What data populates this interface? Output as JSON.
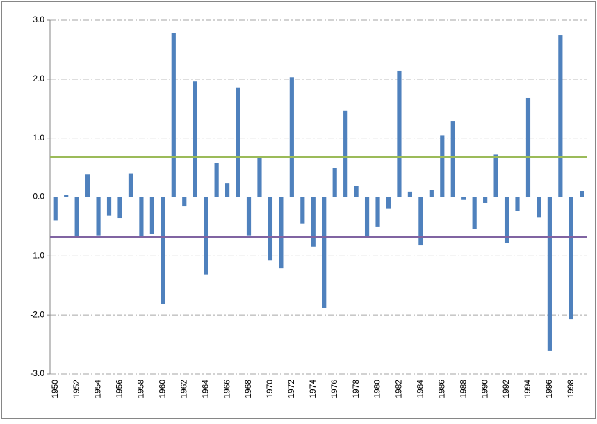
{
  "chart_data": {
    "type": "bar",
    "categories": [
      "1950",
      null,
      "1952",
      null,
      "1954",
      null,
      "1956",
      null,
      "1958",
      null,
      "1960",
      null,
      "1962",
      null,
      "1964",
      null,
      "1966",
      null,
      "1968",
      null,
      "1970",
      null,
      "1972",
      null,
      "1974",
      null,
      "1976",
      null,
      "1978",
      null,
      "1980",
      null,
      "1982",
      null,
      "1984",
      null,
      "1986",
      null,
      "1988",
      null,
      "1990",
      null,
      "1992",
      null,
      "1994",
      null,
      "1996",
      null,
      "1998",
      null
    ],
    "values": [
      -0.4,
      0.03,
      -0.68,
      0.38,
      -0.65,
      -0.32,
      -0.36,
      0.4,
      -0.68,
      -0.62,
      -1.82,
      2.78,
      -0.16,
      1.96,
      -1.31,
      0.58,
      0.24,
      1.86,
      -0.65,
      0.68,
      -1.07,
      -1.21,
      2.03,
      -0.45,
      -0.84,
      -1.88,
      0.5,
      1.47,
      0.19,
      -0.68,
      -0.5,
      -0.19,
      2.14,
      0.09,
      -0.82,
      0.12,
      1.05,
      1.29,
      -0.05,
      -0.54,
      -0.1,
      0.72,
      -0.78,
      -0.24,
      1.68,
      -0.34,
      -2.61,
      2.74,
      -2.07,
      0.1
    ],
    "color": "#4f81bd",
    "ylim": [
      -3,
      3
    ],
    "yticks": [
      {
        "value": -3,
        "label": "-3.0"
      },
      {
        "value": -2,
        "label": "-2.0"
      },
      {
        "value": -1,
        "label": "-1.0"
      },
      {
        "value": 0,
        "label": "0.0"
      },
      {
        "value": 1,
        "label": "1.0"
      },
      {
        "value": 2,
        "label": "2.0"
      },
      {
        "value": 3,
        "label": "3.0"
      }
    ],
    "grid": true,
    "hlines": [
      {
        "value": 0.68,
        "color": "#9bbb59"
      },
      {
        "value": -0.68,
        "color": "#8064a2"
      }
    ]
  }
}
